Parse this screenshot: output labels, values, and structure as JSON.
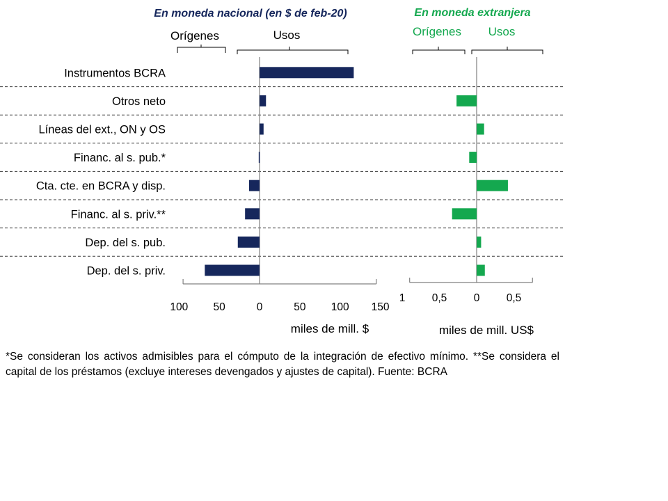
{
  "colors": {
    "national": "#16275c",
    "foreign": "#14a84f",
    "axis": "#808080",
    "divider": "#3a3a3a"
  },
  "chart_data": [
    {
      "type": "bar",
      "orientation": "horizontal",
      "title": "En moneda nacional (en $ de feb-20)",
      "left_group_label": "Orígenes",
      "right_group_label": "Usos",
      "xlabel": "miles de mill. $",
      "xlim": [
        -95,
        145
      ],
      "tick_values": [
        -100,
        -50,
        0,
        50,
        100,
        150
      ],
      "tick_labels": [
        "100",
        "50",
        "0",
        "50",
        "100",
        "150"
      ],
      "categories": [
        "Instrumentos BCRA",
        "Otros neto",
        "Líneas del ext., ON y OS",
        "Financ. al s. pub.*",
        "Cta. cte. en BCRA y disp.",
        "Financ. al s. priv.**",
        "Dep. del s. pub.",
        "Dep. del s. priv."
      ],
      "values": [
        117,
        8,
        5,
        -1,
        -13,
        -18,
        -27,
        -68
      ]
    },
    {
      "type": "bar",
      "orientation": "horizontal",
      "title": "En moneda extranjera",
      "left_group_label": "Orígenes",
      "right_group_label": "Usos",
      "xlabel": "miles de mill. US$",
      "xlim": [
        -0.9,
        0.75
      ],
      "tick_values": [
        -1,
        -0.5,
        0,
        0.5
      ],
      "tick_labels": [
        "1",
        "0,5",
        "0",
        "0,5"
      ],
      "categories": [
        "Instrumentos BCRA",
        "Otros neto",
        "Líneas del ext., ON y OS",
        "Financ. al s. pub.*",
        "Cta. cte. en BCRA y disp.",
        "Financ. al s. priv.**",
        "Dep. del s. pub.",
        "Dep. del s. priv."
      ],
      "values": [
        0,
        -0.27,
        0.1,
        -0.1,
        0.42,
        -0.33,
        0.06,
        0.11
      ]
    }
  ],
  "footnote": "*Se consideran los activos admisibles para el cómputo de la integración de efectivo mínimo. **Se considera el capital de los préstamos (excluye intereses devengados y ajustes de capital). Fuente: BCRA"
}
